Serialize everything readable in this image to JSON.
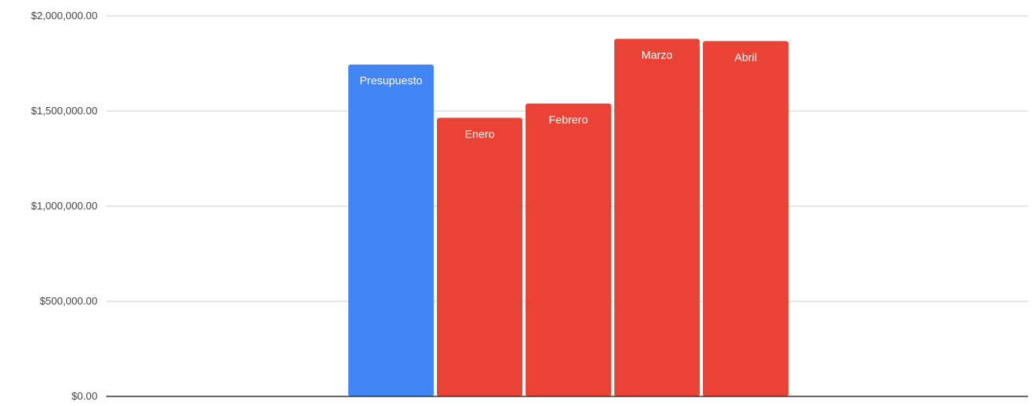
{
  "chart_data": {
    "type": "bar",
    "categories": [
      "Presupuesto",
      "Enero",
      "Febrero",
      "Marzo",
      "Abril"
    ],
    "values": [
      1745000,
      1465000,
      1540000,
      1880000,
      1868000
    ],
    "bar_labels": [
      "Presupuesto",
      "Enero",
      "Febrero",
      "Marzo",
      "Abril"
    ],
    "colors": [
      "#4285f4",
      "#ea4335",
      "#ea4335",
      "#ea4335",
      "#ea4335"
    ],
    "ylim": [
      0,
      2000000
    ],
    "y_ticks": [
      0,
      500000,
      1000000,
      1500000,
      2000000
    ],
    "y_tick_labels": [
      "$0.00",
      "$500,000.00",
      "$1,000,000.00",
      "$1,500,000.00",
      "$2,000,000.00"
    ],
    "title": "",
    "xlabel": "",
    "ylabel": "",
    "grid": true,
    "legend": "none",
    "gridline_color": "#cccccc",
    "baseline_color": "#333333"
  }
}
